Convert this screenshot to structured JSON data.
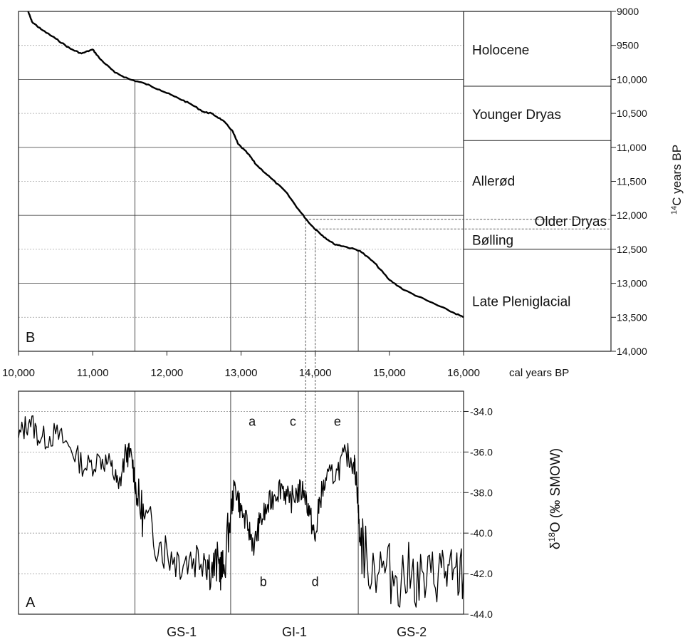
{
  "chart_data": [
    {
      "panel": "B",
      "type": "line",
      "xlabel": "cal years BP",
      "ylabel": "14C years BP",
      "xlim": [
        10000,
        16000
      ],
      "ylim": [
        9000,
        14000
      ],
      "y_inverted": true,
      "x_tick_labels": [
        "10,000",
        "11,000",
        "12,000",
        "13,000",
        "14,000",
        "15,000",
        "16,000"
      ],
      "x_ticks": [
        10000,
        11000,
        12000,
        13000,
        14000,
        15000,
        16000
      ],
      "y_tick_labels": [
        "9000",
        "9500",
        "10,000",
        "10,500",
        "11,000",
        "11,500",
        "12,000",
        "12,500",
        "13,000",
        "13,500",
        "14,000"
      ],
      "y_ticks": [
        9000,
        9500,
        10000,
        10500,
        11000,
        11500,
        12000,
        12500,
        13000,
        13500,
        14000
      ],
      "grid": "horizontal dotted",
      "series": [
        {
          "values": [
            [
              10130,
              9000
            ],
            [
              10180,
              9150
            ],
            [
              10300,
              9260
            ],
            [
              10500,
              9400
            ],
            [
              10700,
              9550
            ],
            [
              10850,
              9620
            ],
            [
              11000,
              9560
            ],
            [
              11100,
              9700
            ],
            [
              11300,
              9900
            ],
            [
              11500,
              10000
            ],
            [
              11700,
              10060
            ],
            [
              11900,
              10150
            ],
            [
              12100,
              10250
            ],
            [
              12300,
              10350
            ],
            [
              12500,
              10480
            ],
            [
              12600,
              10500
            ],
            [
              12750,
              10600
            ],
            [
              12880,
              10750
            ],
            [
              12960,
              10950
            ],
            [
              13100,
              11100
            ],
            [
              13200,
              11250
            ],
            [
              13400,
              11450
            ],
            [
              13600,
              11650
            ],
            [
              13800,
              11950
            ],
            [
              13950,
              12150
            ],
            [
              14100,
              12300
            ],
            [
              14250,
              12420
            ],
            [
              14400,
              12460
            ],
            [
              14600,
              12520
            ],
            [
              14800,
              12700
            ],
            [
              15000,
              12950
            ],
            [
              15200,
              13100
            ],
            [
              15500,
              13250
            ],
            [
              15800,
              13400
            ],
            [
              16000,
              13500
            ]
          ]
        }
      ],
      "vertical_lines_x": [
        11570,
        12860,
        14580
      ],
      "dashed_lines_x": [
        13870,
        14000
      ],
      "dashed_lines_y": [
        12060,
        12200
      ],
      "zones": [
        {
          "label": "Holocene",
          "from": 9000,
          "to": 10100
        },
        {
          "label": "Younger Dryas",
          "from": 10100,
          "to": 10900
        },
        {
          "label": "Allerød",
          "from": 10900,
          "to": 12060
        },
        {
          "label": "Older Dryas",
          "from": 12060,
          "to": 12200
        },
        {
          "label": "Bølling",
          "from": 12200,
          "to": 12500
        },
        {
          "label": "Late Pleniglacial",
          "from": 12500,
          "to": 14000
        }
      ],
      "zone_boundaries": [
        10100,
        10900,
        12500
      ],
      "corner_label": "B"
    },
    {
      "panel": "A",
      "type": "line",
      "ylabel_prefix": "δ",
      "ylabel_sup": "18",
      "ylabel_rest": "O (‰ SMOW)",
      "xlim": [
        10000,
        16000
      ],
      "ylim": [
        -44.0,
        -33.0
      ],
      "y_tick_labels": [
        "-34.0",
        "-36.0",
        "-38.0",
        "-40.0",
        "-42.0",
        "-44.0"
      ],
      "y_ticks": [
        -34,
        -36,
        -38,
        -40,
        -42,
        -44
      ],
      "grid": "horizontal dotted",
      "series": [
        {
          "values": [
            [
              10000,
              -35.3
            ],
            [
              10150,
              -34.4
            ],
            [
              10300,
              -35.4
            ],
            [
              10500,
              -35.1
            ],
            [
              10700,
              -35.8
            ],
            [
              10900,
              -36.8
            ],
            [
              11100,
              -36.3
            ],
            [
              11250,
              -36.7
            ],
            [
              11350,
              -37.8
            ],
            [
              11450,
              -36.0
            ],
            [
              11530,
              -36.3
            ],
            [
              11600,
              -38.3
            ],
            [
              11700,
              -39.3
            ],
            [
              11900,
              -40.5
            ],
            [
              12100,
              -41.2
            ],
            [
              12300,
              -41.3
            ],
            [
              12500,
              -41.0
            ],
            [
              12600,
              -41.8
            ],
            [
              12700,
              -41.5
            ],
            [
              12760,
              -42.0
            ],
            [
              12860,
              -39.0
            ],
            [
              12920,
              -37.6
            ],
            [
              13000,
              -38.9
            ],
            [
              13100,
              -39.8
            ],
            [
              13180,
              -40.6
            ],
            [
              13250,
              -39.5
            ],
            [
              13350,
              -38.8
            ],
            [
              13450,
              -38.1
            ],
            [
              13550,
              -37.6
            ],
            [
              13650,
              -38.5
            ],
            [
              13750,
              -38.0
            ],
            [
              13850,
              -37.9
            ],
            [
              13930,
              -39.1
            ],
            [
              14000,
              -40.4
            ],
            [
              14060,
              -38.3
            ],
            [
              14150,
              -37.4
            ],
            [
              14300,
              -36.9
            ],
            [
              14420,
              -36.1
            ],
            [
              14520,
              -36.5
            ],
            [
              14560,
              -37.4
            ],
            [
              14600,
              -40.2
            ],
            [
              14700,
              -41.4
            ],
            [
              14900,
              -41.7
            ],
            [
              15100,
              -42.2
            ],
            [
              15300,
              -42.0
            ],
            [
              15500,
              -42.5
            ],
            [
              15700,
              -41.7
            ],
            [
              15850,
              -42.3
            ],
            [
              16000,
              -42.0
            ]
          ]
        }
      ],
      "vertical_lines_x": [
        11570,
        12860,
        14580
      ],
      "dashed_lines_x": [
        13870,
        14000
      ],
      "annotations": [
        {
          "text": "a",
          "x": 13150,
          "y": -34.5
        },
        {
          "text": "c",
          "x": 13700,
          "y": -34.5
        },
        {
          "text": "e",
          "x": 14300,
          "y": -34.5
        },
        {
          "text": "b",
          "x": 13300,
          "y": -42.4
        },
        {
          "text": "d",
          "x": 14000,
          "y": -42.4
        }
      ],
      "stage_labels": [
        {
          "text": "GS-1",
          "x": 12200
        },
        {
          "text": "GI-1",
          "x": 13720
        },
        {
          "text": "GS-2",
          "x": 15300
        }
      ],
      "corner_label": "A"
    }
  ]
}
